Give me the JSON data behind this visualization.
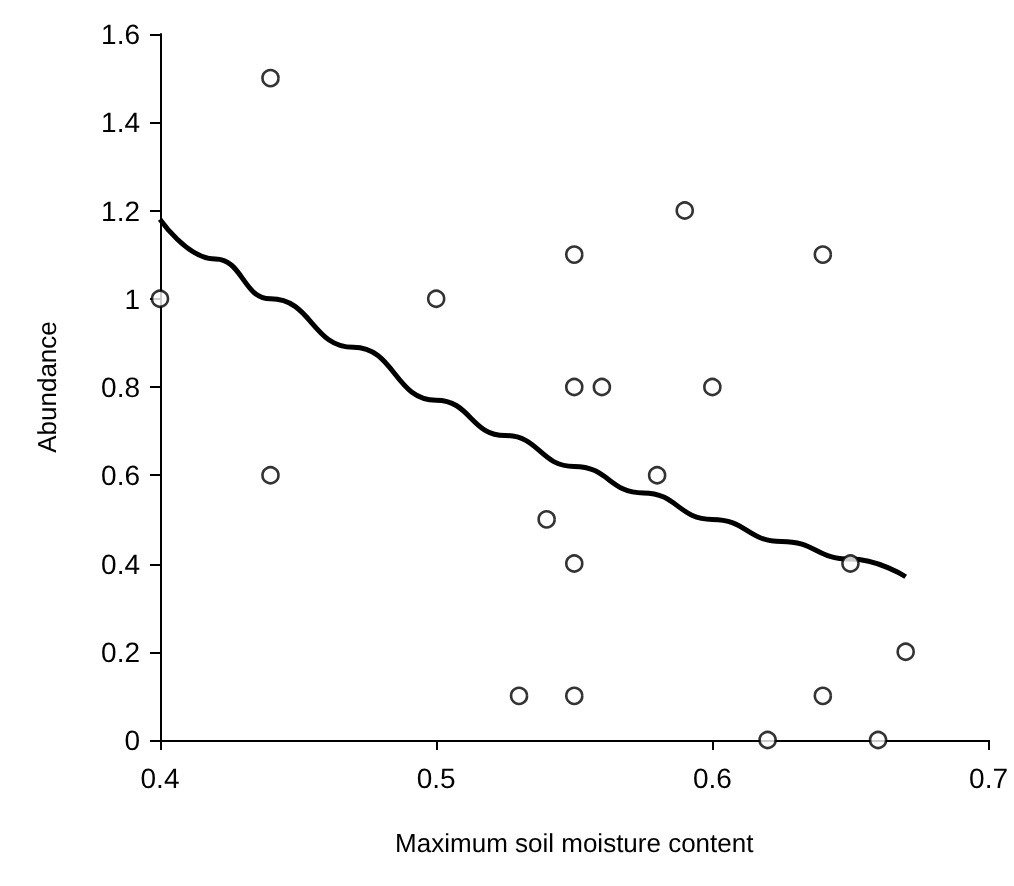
{
  "chart_data": {
    "type": "scatter",
    "xlabel": "Maximum soil moisture content",
    "ylabel": "Abundance",
    "xlim": [
      0.4,
      0.7
    ],
    "xticks": [
      0.4,
      0.5,
      0.6,
      0.7
    ],
    "ylim": [
      0,
      1.6
    ],
    "yticks": [
      0,
      0.2,
      0.4,
      0.6,
      0.8,
      1,
      1.2,
      1.4,
      1.6
    ],
    "grid": false,
    "series": [
      {
        "color": "#000000",
        "marker": "circle",
        "x": [
          0.4,
          0.44,
          0.44,
          0.5,
          0.53,
          0.54,
          0.55,
          0.55,
          0.55,
          0.55,
          0.56,
          0.58,
          0.59,
          0.6,
          0.62,
          0.64,
          0.64,
          0.65,
          0.66,
          0.67
        ],
        "values": [
          1.0,
          1.5,
          0.6,
          1.0,
          0.1,
          0.5,
          1.1,
          0.8,
          0.4,
          0.1,
          0.8,
          0.6,
          1.2,
          0.8,
          0,
          1.1,
          0.1,
          0.4,
          0,
          0.2
        ]
      },
      {
        "type": "line",
        "color": "#000000",
        "marker": "none",
        "line_style": "solid",
        "x": [
          0.4,
          0.42,
          0.44,
          0.47,
          0.5,
          0.525,
          0.55,
          0.575,
          0.6,
          0.625,
          0.65,
          0.67
        ],
        "values": [
          1.18,
          1.09,
          1.0,
          0.89,
          0.77,
          0.69,
          0.62,
          0.56,
          0.5,
          0.45,
          0.41,
          0.37
        ]
      }
    ]
  }
}
